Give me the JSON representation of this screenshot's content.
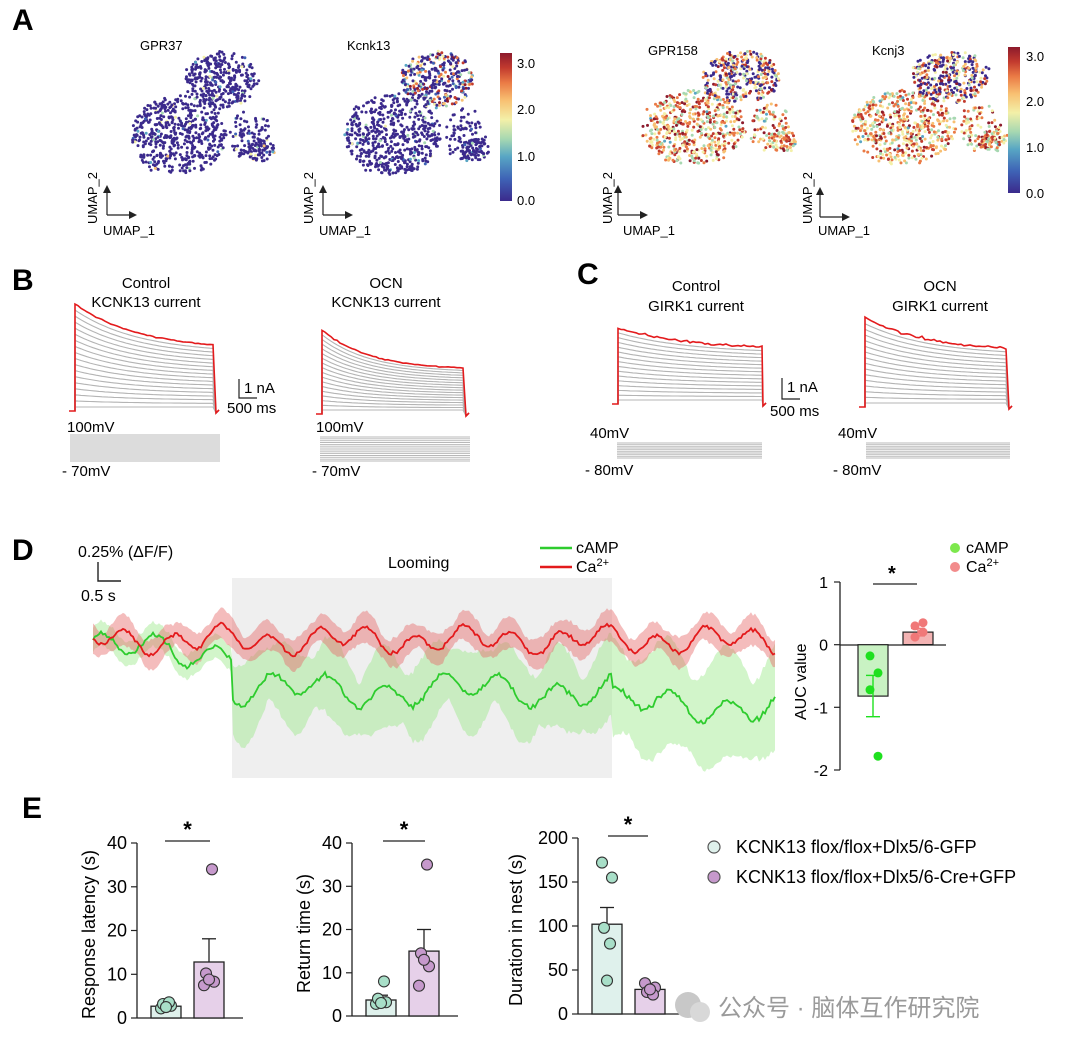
{
  "colors": {
    "red": "#e31a1c",
    "grey_trace": "#b4b4b4",
    "green": "#2ecc2e",
    "pink": "#f28b8b",
    "bar_green": "#c9f2c3",
    "bar_pink": "#f3b3b3",
    "ctrl_fill": "#dff1ec",
    "ctrl_dot": "#a8dfc8",
    "cre_fill": "#e6d0e9",
    "cre_dot": "#c699cc",
    "cmap": [
      "#3b2a8c",
      "#3e63b6",
      "#58a6c4",
      "#a7d8b1",
      "#f3f0a8",
      "#f8c072",
      "#ea7a45",
      "#c23a2e",
      "#8c1a2c"
    ]
  },
  "panel_labels": [
    "A",
    "B",
    "C",
    "D",
    "E"
  ],
  "A": {
    "umaps": [
      {
        "gene": "GPR37",
        "profile": "low"
      },
      {
        "gene": "Kcnk13",
        "profile": "low_high_top"
      },
      {
        "gene": "GPR158",
        "profile": "high"
      },
      {
        "gene": "Kcnj3",
        "profile": "high"
      }
    ],
    "axis_x": "UMAP_1",
    "axis_y": "UMAP_2",
    "colorbar_ticks": [
      "0.0",
      "1.0",
      "2.0",
      "3.0"
    ]
  },
  "B": {
    "traces": [
      {
        "title1": "Control",
        "title2": "KCNK13 current"
      },
      {
        "title1": "OCN",
        "title2": "KCNK13 current"
      }
    ],
    "scale_y": "1 nA",
    "scale_x": "500 ms",
    "v_high": "100mV",
    "v_low": "- 70mV"
  },
  "C": {
    "traces": [
      {
        "title1": "Control",
        "title2": "GIRK1 current"
      },
      {
        "title1": "OCN",
        "title2": "GIRK1 current"
      }
    ],
    "scale_y": "1 nA",
    "scale_x": "500 ms",
    "v_high": "40mV",
    "v_low": "- 80mV"
  },
  "D": {
    "scale_y": "0.25% (ΔF/F)",
    "scale_x": "0.5 s",
    "looming": "Looming",
    "legend_camp": "cAMP",
    "legend_ca": "Ca",
    "legend_ca_sup": "2+",
    "sig": "*",
    "chart_data": {
      "type": "bar",
      "categories": [
        "cAMP",
        "Ca2+"
      ],
      "values": [
        -0.82,
        0.2
      ],
      "sem": [
        0.33,
        0.06
      ],
      "points": [
        [
          -0.18,
          -0.45,
          -0.72,
          -1.78
        ],
        [
          0.12,
          0.2,
          0.3,
          0.35
        ]
      ],
      "ylabel": "AUC value",
      "ylim": [
        -2,
        1
      ],
      "yticks": [
        1,
        0,
        -1,
        -2
      ],
      "legend": [
        "cAMP",
        "Ca2+"
      ]
    }
  },
  "E": {
    "legend_ctrl": "KCNK13 flox/flox+Dlx5/6-GFP",
    "legend_cre": "KCNK13 flox/flox+Dlx5/6-Cre+GFP",
    "watermark": "公众号 · 脑体互作研究院",
    "chart_data": [
      {
        "type": "bar",
        "ylabel": "Response latency (s)",
        "ylim": [
          0,
          40
        ],
        "yticks": [
          0,
          10,
          20,
          30,
          40
        ],
        "categories": [
          "KCNK13 flox/flox+Dlx5/6-GFP",
          "KCNK13 flox/flox+Dlx5/6-Cre+GFP"
        ],
        "values": [
          2.7,
          12.8
        ],
        "sem": [
          0.4,
          5.3
        ],
        "points": [
          [
            2.2,
            2.8,
            3.2,
            3.6,
            2.5
          ],
          [
            7.5,
            8.3,
            10.2,
            34.0,
            8.8
          ]
        ],
        "sig": "*"
      },
      {
        "type": "bar",
        "ylabel": "Return time (s)",
        "ylim": [
          0,
          40
        ],
        "yticks": [
          0,
          10,
          20,
          30,
          40
        ],
        "categories": [
          "KCNK13 flox/flox+Dlx5/6-GFP",
          "KCNK13 flox/flox+Dlx5/6-Cre+GFP"
        ],
        "values": [
          3.7,
          15.0
        ],
        "sem": [
          1.1,
          5.0
        ],
        "points": [
          [
            2.8,
            3.2,
            4.0,
            8.0,
            3.0
          ],
          [
            7.0,
            11.5,
            14.5,
            35.0,
            13.0
          ]
        ],
        "sig": "*"
      },
      {
        "type": "bar",
        "ylabel": "Duration in nest (s)",
        "ylim": [
          0,
          200
        ],
        "yticks": [
          0,
          50,
          100,
          150,
          200
        ],
        "categories": [
          "KCNK13 flox/flox+Dlx5/6-GFP",
          "KCNK13 flox/flox+Dlx5/6-Cre+GFP"
        ],
        "values": [
          102,
          28
        ],
        "sem": [
          19,
          4
        ],
        "points": [
          [
            172,
            155,
            98,
            80,
            38
          ],
          [
            35,
            30,
            25,
            22,
            28
          ]
        ],
        "sig": "*"
      }
    ]
  }
}
